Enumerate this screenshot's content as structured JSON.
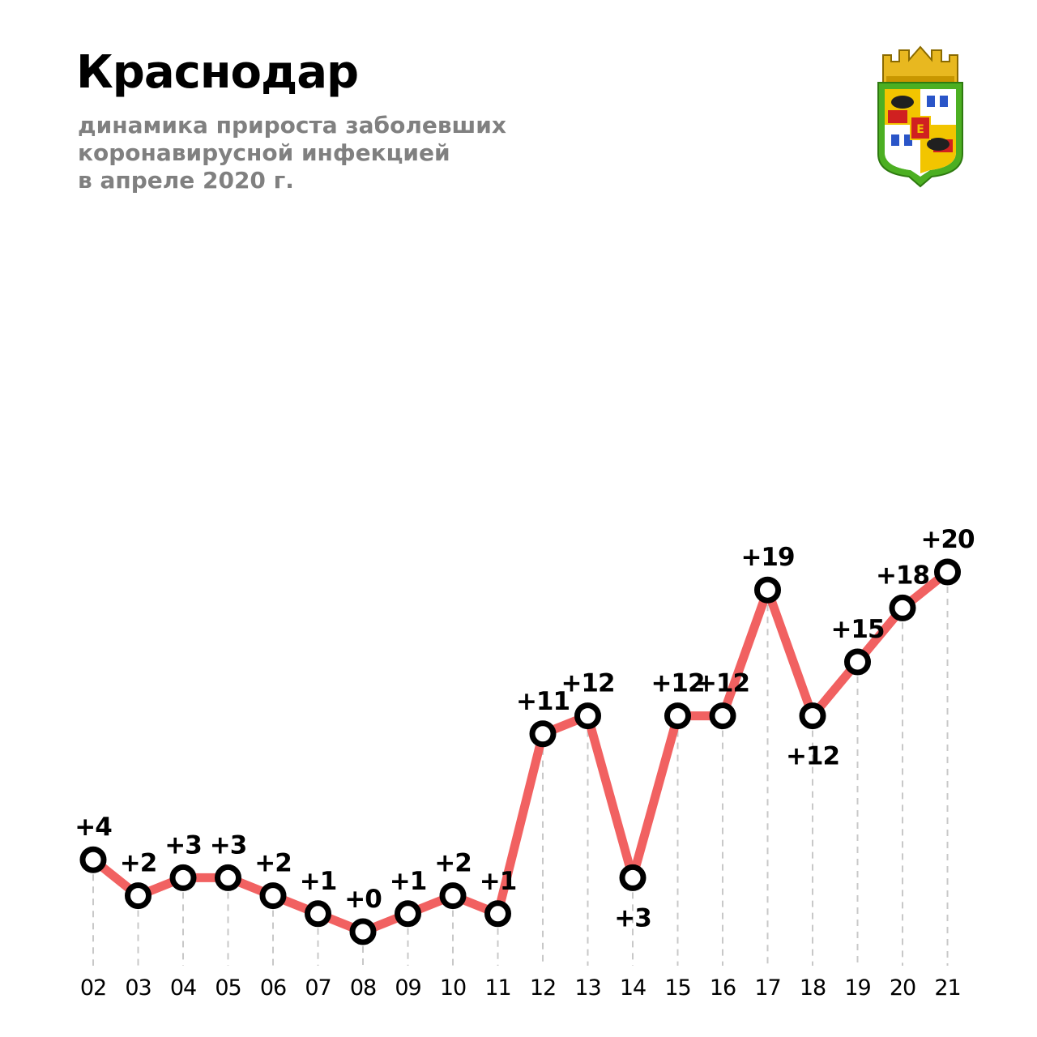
{
  "header": {
    "title": "Краснодар",
    "subtitle_lines": [
      "динамика прироста заболевших",
      "коронавирусной инфекцией",
      "в апреле 2020 г."
    ]
  },
  "emblem": {
    "icon": "krasnodar-coat-of-arms-icon"
  },
  "colors": {
    "line": "#f16161",
    "marker_stroke": "#000000",
    "marker_fill": "#ffffff",
    "guide": "#c8c8c8",
    "subtitle": "#808080"
  },
  "chart_data": {
    "type": "line",
    "categories": [
      "02",
      "03",
      "04",
      "05",
      "06",
      "07",
      "08",
      "09",
      "10",
      "11",
      "12",
      "13",
      "14",
      "15",
      "16",
      "17",
      "18",
      "19",
      "20",
      "21"
    ],
    "values": [
      4,
      2,
      3,
      3,
      2,
      1,
      0,
      1,
      2,
      1,
      11,
      12,
      3,
      12,
      12,
      19,
      12,
      15,
      18,
      20
    ],
    "data_labels": [
      "+4",
      "+2",
      "+3",
      "+3",
      "+2",
      "+1",
      "+0",
      "+1",
      "+2",
      "+1",
      "+11",
      "+12",
      "+3",
      "+12",
      "+12",
      "+19",
      "+12",
      "+15",
      "+18",
      "+20"
    ],
    "title": "Краснодар",
    "xlabel": "",
    "ylabel": "",
    "grid": false,
    "legend": "none"
  }
}
